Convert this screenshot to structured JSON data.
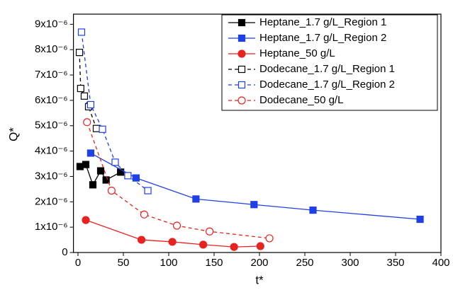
{
  "chart_data": {
    "type": "line",
    "x_label": "t*",
    "y_label": "Q*",
    "xlim": [
      -5,
      400
    ],
    "ylim": [
      0,
      9.4e-06
    ],
    "xticks": [
      0,
      50,
      100,
      150,
      200,
      250,
      300,
      350,
      400
    ],
    "yticks": [
      0,
      {
        "value": 1e-06,
        "label": "1x10⁻⁶"
      },
      {
        "value": 2e-06,
        "label": "2x10⁻⁶"
      },
      {
        "value": 3e-06,
        "label": "3x10⁻⁶"
      },
      {
        "value": 4e-06,
        "label": "4x10⁻⁶"
      },
      {
        "value": 5e-06,
        "label": "5x10⁻⁶"
      },
      {
        "value": 6e-06,
        "label": "6x10⁻⁶"
      },
      {
        "value": 7e-06,
        "label": "7x10⁻⁶"
      },
      {
        "value": 8e-06,
        "label": "8x10⁻⁶"
      },
      {
        "value": 9e-06,
        "label": "9x10⁻⁶"
      }
    ],
    "legend": "upper right",
    "series": [
      {
        "name": "Heptane_1.7 g/L_Region 1",
        "color": "#000000",
        "marker": "square",
        "filled": true,
        "dashed": false,
        "x": [
          2.3,
          8.6,
          16.4,
          25,
          31,
          47
        ],
        "values": [
          3.39e-06,
          3.47e-06,
          2.67e-06,
          3.22e-06,
          2.86e-06,
          3.17e-06
        ]
      },
      {
        "name": "Heptane_1.7 g/L_Region 2",
        "color": "#1f3fe8",
        "marker": "square",
        "filled": true,
        "dashed": false,
        "x": [
          14,
          64,
          130,
          194,
          259,
          377
        ],
        "values": [
          3.92e-06,
          2.94e-06,
          2.11e-06,
          1.89e-06,
          1.67e-06,
          1.31e-06
        ]
      },
      {
        "name": "Heptane_50 g/L",
        "color": "#e8221f",
        "marker": "circle",
        "filled": true,
        "dashed": false,
        "x": [
          8.6,
          70,
          104,
          138,
          172,
          201
        ],
        "values": [
          1.28e-06,
          5e-07,
          4.2e-07,
          3.1e-07,
          2.2e-07,
          2.5e-07
        ]
      },
      {
        "name": "Dodecane_1.7 g/L_Region 1",
        "color": "#000000",
        "marker": "square",
        "filled": false,
        "dashed": true,
        "x": [
          1.6,
          3,
          7,
          11.7,
          20.3
        ],
        "values": [
          7.89e-06,
          6.47e-06,
          6.17e-06,
          5.75e-06,
          4.89e-06
        ]
      },
      {
        "name": "Dodecane_1.7 g/L_Region 2",
        "color": "#1f3fe8",
        "marker": "square",
        "filled": false,
        "dashed": true,
        "x": [
          3.9,
          14,
          27,
          41,
          55,
          77
        ],
        "values": [
          8.69e-06,
          5.83e-06,
          4.86e-06,
          3.56e-06,
          3.03e-06,
          2.44e-06
        ]
      },
      {
        "name": "Dodecane_50 g/L",
        "color": "#e8221f",
        "marker": "circle",
        "filled": false,
        "dashed": true,
        "x": [
          10,
          37,
          73,
          109,
          145,
          211
        ],
        "values": [
          5.14e-06,
          2.44e-06,
          1.5e-06,
          1.06e-06,
          8.3e-07,
          5.6e-07
        ]
      }
    ]
  }
}
